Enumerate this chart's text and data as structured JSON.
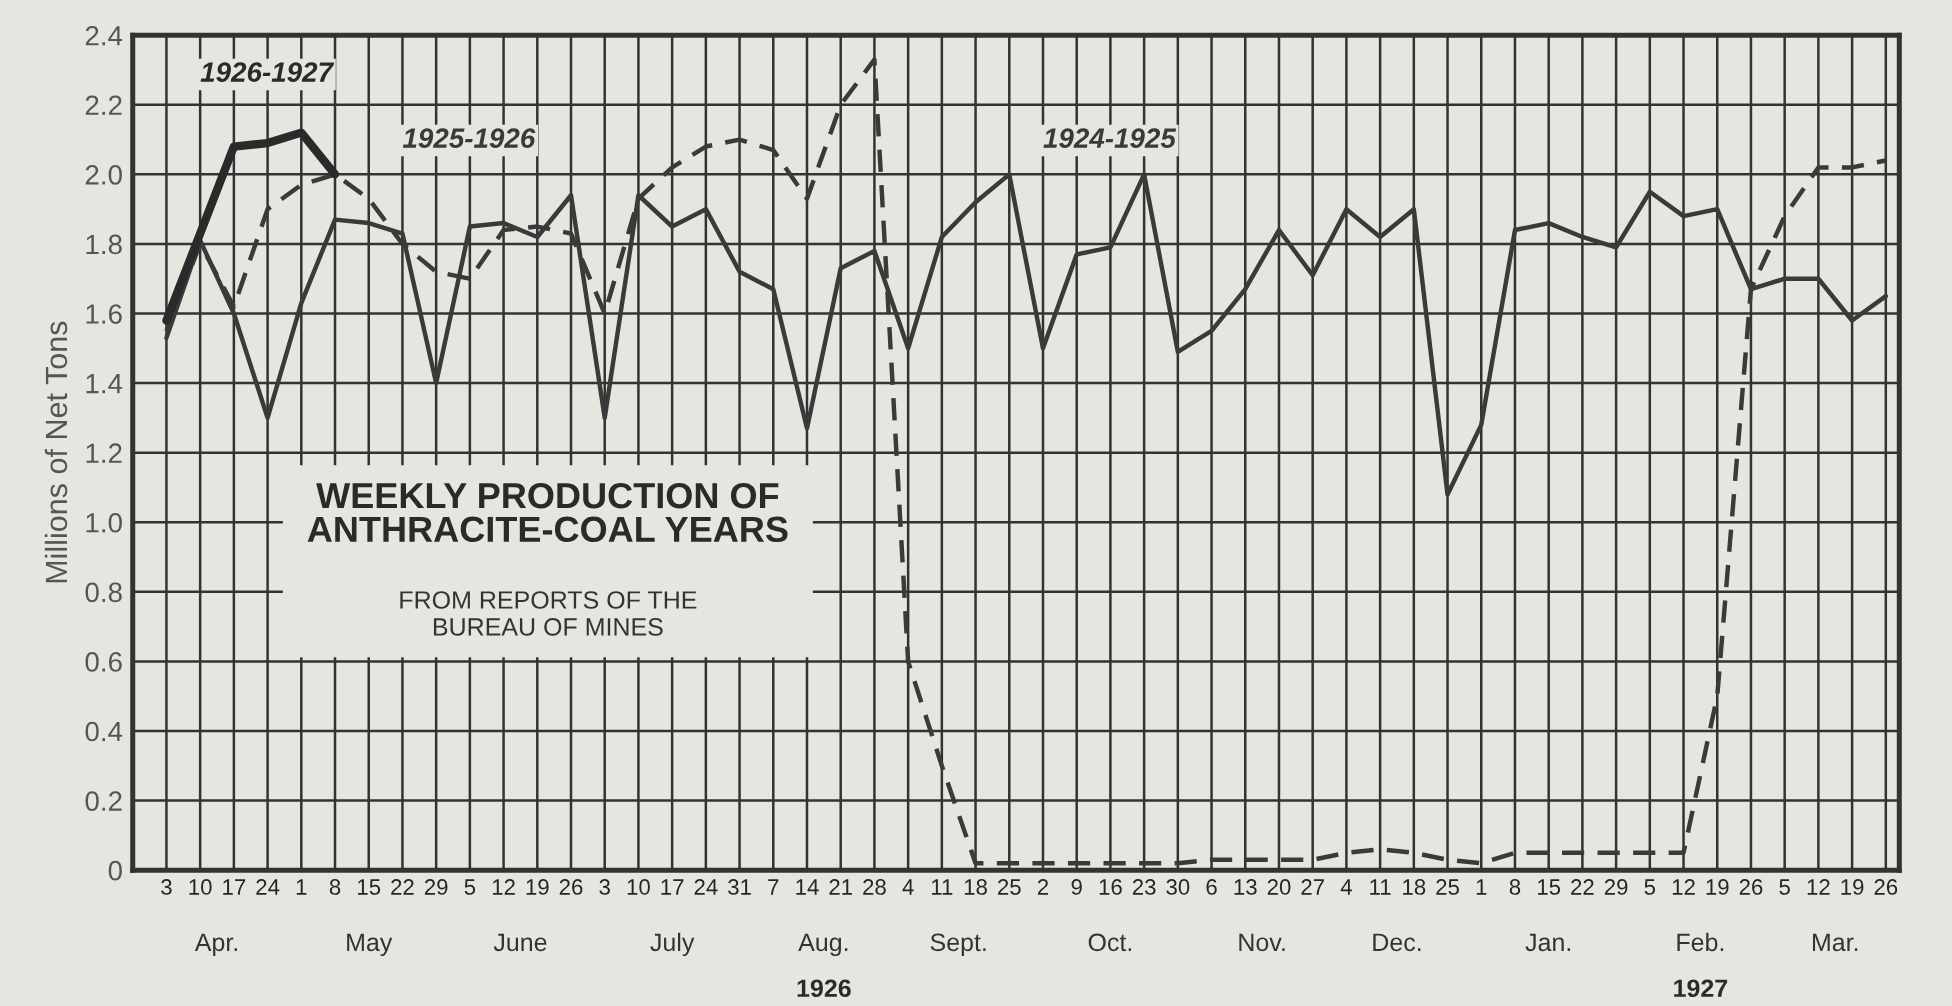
{
  "chart_data": {
    "type": "line",
    "title": "WEEKLY PRODUCTION OF\nANTHRACITE-COAL YEARS",
    "subtitle": "FROM REPORTS OF THE\nBUREAU OF MINES",
    "ylabel": "Millions of Net Tons",
    "categories": [
      "3",
      "10",
      "17",
      "24",
      "1",
      "8",
      "15",
      "22",
      "29",
      "5",
      "12",
      "19",
      "26",
      "3",
      "10",
      "17",
      "24",
      "31",
      "7",
      "14",
      "21",
      "28",
      "4",
      "11",
      "18",
      "25",
      "2",
      "9",
      "16",
      "23",
      "30",
      "6",
      "13",
      "20",
      "27",
      "4",
      "11",
      "18",
      "25",
      "1",
      "8",
      "15",
      "22",
      "29",
      "5",
      "12",
      "19",
      "26",
      "5",
      "12",
      "19",
      "26"
    ],
    "series": [
      {
        "name": "1926-1927",
        "color": "#2a2a2a",
        "line_style": "solid",
        "values": [
          1.58,
          1.83,
          2.08,
          2.09,
          2.12,
          2.0,
          null,
          null,
          null,
          null,
          null,
          null,
          null,
          null,
          null,
          null,
          null,
          null,
          null,
          null,
          null,
          null,
          null,
          null,
          null,
          null,
          null,
          null,
          null,
          null,
          null,
          null,
          null,
          null,
          null,
          null,
          null,
          null,
          null,
          null,
          null,
          null,
          null,
          null,
          null,
          null,
          null,
          null,
          null,
          null,
          null,
          null
        ]
      },
      {
        "name": "1925-1926",
        "color": "#3a3a3a",
        "line_style": "dashed",
        "values": [
          1.55,
          1.8,
          1.62,
          1.9,
          1.97,
          2.0,
          1.93,
          1.8,
          1.72,
          1.7,
          1.84,
          1.85,
          1.83,
          1.6,
          1.93,
          2.02,
          2.08,
          2.1,
          2.07,
          1.93,
          2.2,
          2.33,
          0.6,
          0.3,
          0.02,
          0.02,
          0.02,
          0.02,
          0.02,
          0.02,
          0.02,
          0.03,
          0.03,
          0.03,
          0.03,
          0.05,
          0.06,
          0.05,
          0.03,
          0.02,
          0.05,
          0.05,
          0.05,
          0.05,
          0.05,
          0.05,
          0.5,
          1.67,
          1.88,
          2.02,
          2.02,
          2.04
        ]
      },
      {
        "name": "1924-1925",
        "color": "#3a3a3a",
        "line_style": "solid",
        "values": [
          1.53,
          1.81,
          1.6,
          1.3,
          1.63,
          1.87,
          1.86,
          1.83,
          1.4,
          1.85,
          1.86,
          1.82,
          1.94,
          1.3,
          1.94,
          1.85,
          1.9,
          1.72,
          1.67,
          1.27,
          1.73,
          1.78,
          1.5,
          1.82,
          1.92,
          2.0,
          1.5,
          1.77,
          1.79,
          2.0,
          1.49,
          1.55,
          1.67,
          1.84,
          1.71,
          1.9,
          1.82,
          1.9,
          1.08,
          1.28,
          1.84,
          1.86,
          1.82,
          1.79,
          1.95,
          1.88,
          1.9,
          1.67,
          1.7,
          1.7,
          1.58,
          1.65
        ]
      }
    ],
    "ylim": [
      0,
      2.4
    ],
    "yticks": [
      0,
      0.2,
      0.4,
      0.6,
      0.8,
      {
        "value": 1,
        "label": "1.0"
      },
      1.2,
      1.4,
      1.6,
      1.8,
      {
        "value": 2,
        "label": "2.0"
      },
      2.2,
      2.4
    ],
    "grid": true,
    "marker": "none",
    "annotations": [
      "Apr.",
      "May",
      "June",
      "July",
      "Aug.",
      "Sept.",
      "Oct.",
      "Nov.",
      "Dec.",
      "Jan.",
      "Feb.",
      "Mar.",
      "1926",
      "1927"
    ]
  }
}
